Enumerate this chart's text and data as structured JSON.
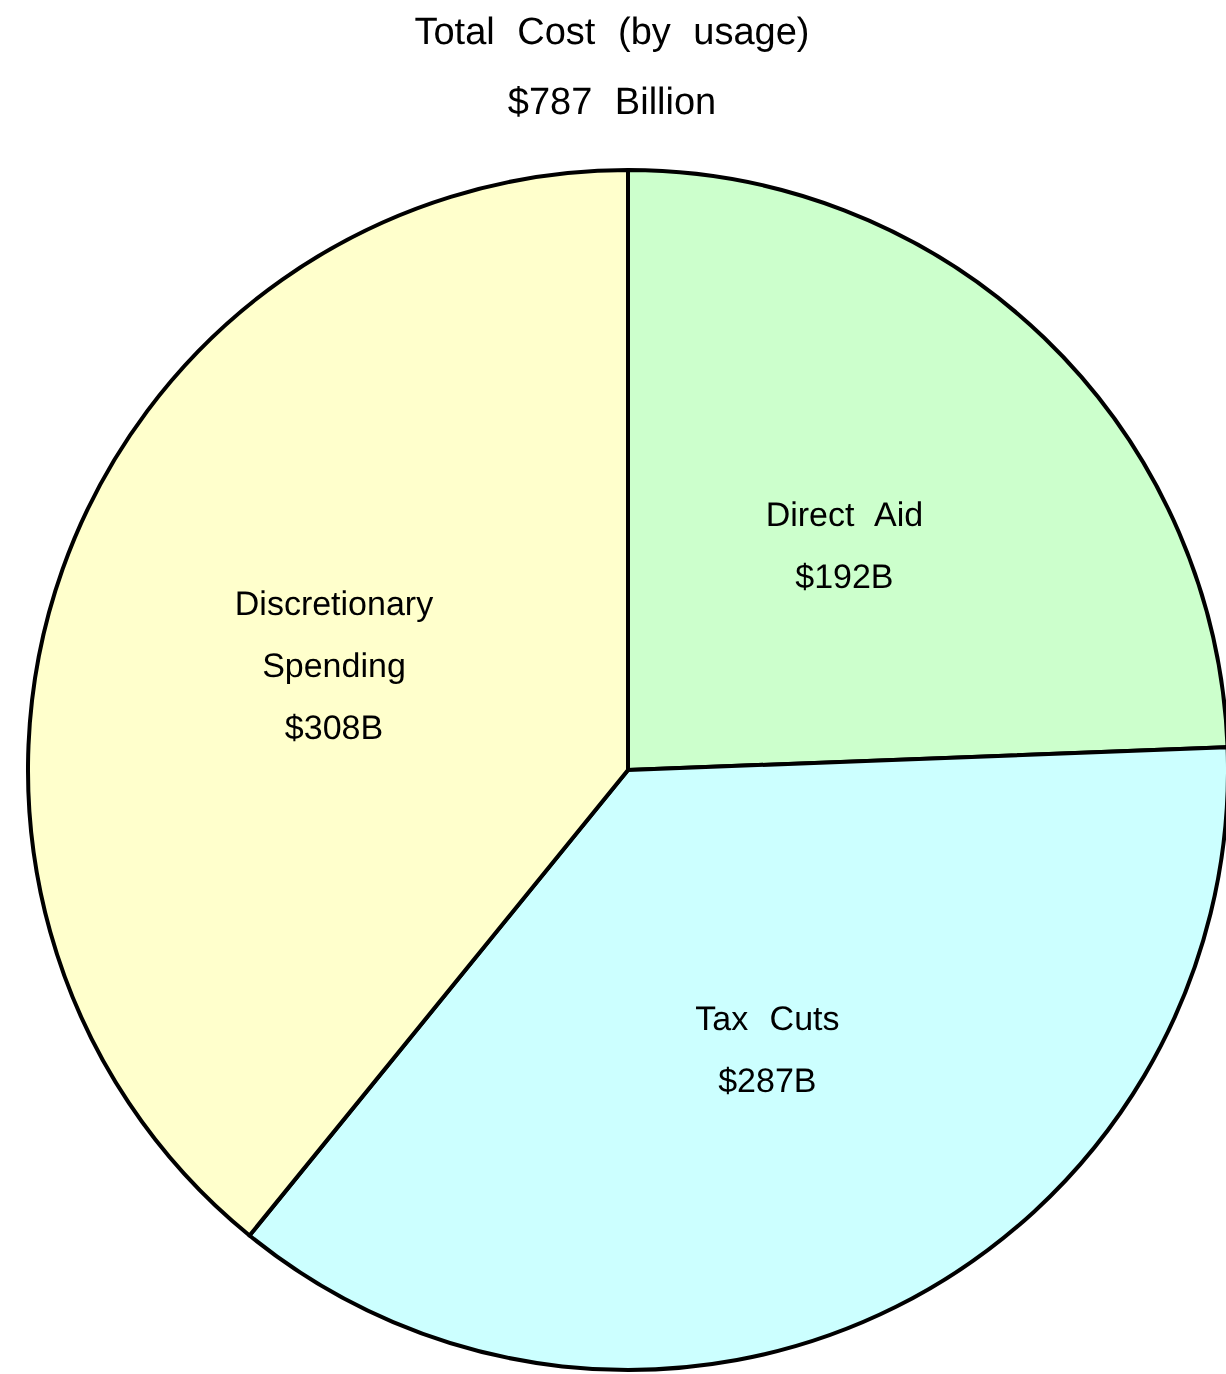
{
  "chart_data": {
    "type": "pie",
    "title": "Total Cost (by usage)",
    "subtitle": "$787 Billion",
    "categories": [
      "Direct Aid",
      "Tax Cuts",
      "Discretionary Spending"
    ],
    "values": [
      192,
      287,
      308
    ],
    "colors": [
      "#ccffcc",
      "#ccffff",
      "#ffffcc"
    ],
    "value_labels": [
      "$192B",
      "$287B",
      "$308B"
    ]
  }
}
